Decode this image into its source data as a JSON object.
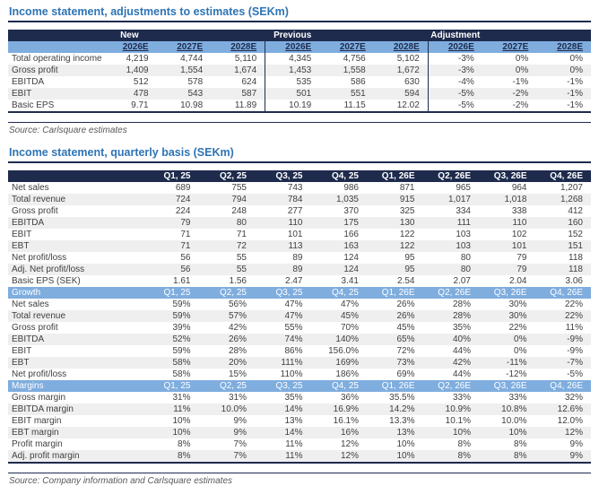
{
  "colors": {
    "navy": "#1e2b4d",
    "title_blue": "#2e74b5",
    "band_blue": "#7fadde",
    "stripe_gray": "#efefef"
  },
  "adjustments": {
    "title": "Income statement, adjustments to estimates (SEKm)",
    "groups": [
      "New",
      "Previous",
      "Adjustment"
    ],
    "year_headers": [
      "2026E",
      "2027E",
      "2028E"
    ],
    "rows": [
      {
        "label": "Total operating income",
        "new": [
          "4,219",
          "4,744",
          "5,110"
        ],
        "previous": [
          "4,345",
          "4,756",
          "5,102"
        ],
        "adjustment": [
          "-3%",
          "0%",
          "0%"
        ]
      },
      {
        "label": "Gross profit",
        "new": [
          "1,409",
          "1,554",
          "1,674"
        ],
        "previous": [
          "1,453",
          "1,558",
          "1,672"
        ],
        "adjustment": [
          "-3%",
          "0%",
          "0%"
        ]
      },
      {
        "label": "EBITDA",
        "new": [
          "512",
          "578",
          "624"
        ],
        "previous": [
          "535",
          "586",
          "630"
        ],
        "adjustment": [
          "-4%",
          "-1%",
          "-1%"
        ]
      },
      {
        "label": "EBIT",
        "new": [
          "478",
          "543",
          "587"
        ],
        "previous": [
          "501",
          "551",
          "594"
        ],
        "adjustment": [
          "-5%",
          "-2%",
          "-1%"
        ]
      },
      {
        "label": "Basic EPS",
        "new": [
          "9.71",
          "10.98",
          "11.89"
        ],
        "previous": [
          "10.19",
          "11.15",
          "12.02"
        ],
        "adjustment": [
          "-5%",
          "-2%",
          "-1%"
        ]
      }
    ],
    "source": "Source: Carlsquare estimates"
  },
  "quarterly": {
    "title": "Income statement, quarterly basis (SEKm)",
    "quarters": [
      "Q1, 25",
      "Q2, 25",
      "Q3, 25",
      "Q4, 25",
      "Q1, 26E",
      "Q2, 26E",
      "Q3, 26E",
      "Q4, 26E"
    ],
    "sections": [
      {
        "label": "",
        "rows": [
          {
            "label": "Net sales",
            "values": [
              "689",
              "755",
              "743",
              "986",
              "871",
              "965",
              "964",
              "1,207"
            ]
          },
          {
            "label": "Total revenue",
            "values": [
              "724",
              "794",
              "784",
              "1,035",
              "915",
              "1,017",
              "1,018",
              "1,268"
            ]
          },
          {
            "label": "Gross profit",
            "values": [
              "224",
              "248",
              "277",
              "370",
              "325",
              "334",
              "338",
              "412"
            ]
          },
          {
            "label": "EBITDA",
            "values": [
              "79",
              "80",
              "110",
              "175",
              "130",
              "111",
              "110",
              "160"
            ]
          },
          {
            "label": "EBIT",
            "values": [
              "71",
              "71",
              "101",
              "166",
              "122",
              "103",
              "102",
              "152"
            ]
          },
          {
            "label": "EBT",
            "values": [
              "71",
              "72",
              "113",
              "163",
              "122",
              "103",
              "101",
              "151"
            ]
          },
          {
            "label": "Net profit/loss",
            "values": [
              "56",
              "55",
              "89",
              "124",
              "95",
              "80",
              "79",
              "118"
            ]
          },
          {
            "label": "Adj. Net profit/loss",
            "values": [
              "56",
              "55",
              "89",
              "124",
              "95",
              "80",
              "79",
              "118"
            ]
          },
          {
            "label": "Basic EPS (SEK)",
            "values": [
              "1.61",
              "1.56",
              "2.47",
              "3.41",
              "2.54",
              "2.07",
              "2.04",
              "3.06"
            ]
          }
        ]
      },
      {
        "label": "Growth",
        "rows": [
          {
            "label": "Net sales",
            "values": [
              "59%",
              "56%",
              "47%",
              "47%",
              "26%",
              "28%",
              "30%",
              "22%"
            ]
          },
          {
            "label": "Total revenue",
            "values": [
              "59%",
              "57%",
              "47%",
              "45%",
              "26%",
              "28%",
              "30%",
              "22%"
            ]
          },
          {
            "label": "Gross profit",
            "values": [
              "39%",
              "42%",
              "55%",
              "70%",
              "45%",
              "35%",
              "22%",
              "11%"
            ]
          },
          {
            "label": "EBITDA",
            "values": [
              "52%",
              "26%",
              "74%",
              "140%",
              "65%",
              "40%",
              "0%",
              "-9%"
            ]
          },
          {
            "label": "EBIT",
            "values": [
              "59%",
              "28%",
              "86%",
              "156.0%",
              "72%",
              "44%",
              "0%",
              "-9%"
            ]
          },
          {
            "label": "EBT",
            "values": [
              "58%",
              "20%",
              "111%",
              "169%",
              "73%",
              "42%",
              "-11%",
              "-7%"
            ]
          },
          {
            "label": "Net profit/loss",
            "values": [
              "58%",
              "15%",
              "110%",
              "186%",
              "69%",
              "44%",
              "-12%",
              "-5%"
            ]
          }
        ]
      },
      {
        "label": "Margins",
        "rows": [
          {
            "label": "Gross margin",
            "values": [
              "31%",
              "31%",
              "35%",
              "36%",
              "35.5%",
              "33%",
              "33%",
              "32%"
            ]
          },
          {
            "label": "EBITDA margin",
            "values": [
              "11%",
              "10.0%",
              "14%",
              "16.9%",
              "14.2%",
              "10.9%",
              "10.8%",
              "12.6%"
            ]
          },
          {
            "label": "EBIT margin",
            "values": [
              "10%",
              "9%",
              "13%",
              "16.1%",
              "13.3%",
              "10.1%",
              "10.0%",
              "12.0%"
            ]
          },
          {
            "label": "EBT margin",
            "values": [
              "10%",
              "9%",
              "14%",
              "16%",
              "13%",
              "10%",
              "10%",
              "12%"
            ]
          },
          {
            "label": "Profit margin",
            "values": [
              "8%",
              "7%",
              "11%",
              "12%",
              "10%",
              "8%",
              "8%",
              "9%"
            ]
          },
          {
            "label": "Adj. profit margin",
            "values": [
              "8%",
              "7%",
              "11%",
              "12%",
              "10%",
              "8%",
              "8%",
              "9%"
            ]
          }
        ]
      }
    ],
    "source": "Source: Company information and Carlsquare estimates"
  }
}
